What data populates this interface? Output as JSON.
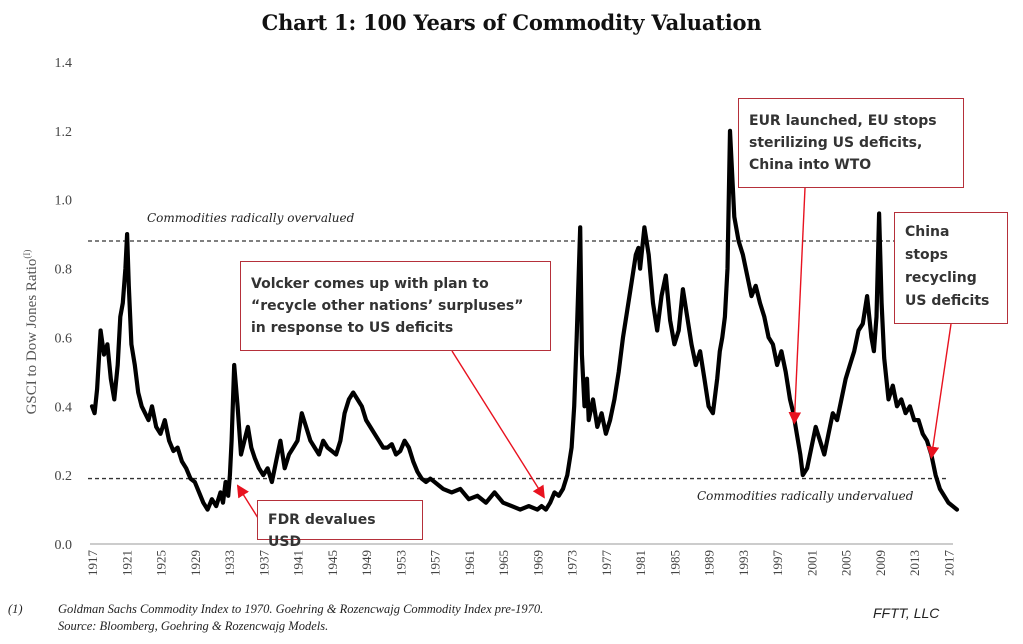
{
  "chart_data": {
    "type": "line",
    "title": "Chart 1: 100 Years of Commodity Valuation",
    "xlabel": "",
    "ylabel": "GSCI to Dow Jones Ratio",
    "ylabel_superscript": "(I)",
    "xlim": [
      1917,
      2018
    ],
    "ylim": [
      0,
      1.4
    ],
    "yticks": [
      "0.0",
      "0.2",
      "0.4",
      "0.6",
      "0.8",
      "1.0",
      "1.2",
      "1.4"
    ],
    "ytick_values": [
      0,
      0.2,
      0.4,
      0.6,
      0.8,
      1.0,
      1.2,
      1.4
    ],
    "xticks": [
      "1917",
      "1921",
      "1925",
      "1929",
      "1933",
      "1937",
      "1941",
      "1945",
      "1949",
      "1953",
      "1957",
      "1961",
      "1965",
      "1969",
      "1973",
      "1977",
      "1981",
      "1985",
      "1989",
      "1993",
      "1997",
      "2001",
      "2005",
      "2009",
      "2013",
      "2017"
    ],
    "grid": false,
    "legend": "none",
    "color": "#000000",
    "reference_lines": [
      {
        "y": 0.88,
        "style": "dashed",
        "label": "Commodities radically overvalued"
      },
      {
        "y": 0.19,
        "style": "dashed",
        "label": "Commodities radically undervalued"
      }
    ],
    "series": [
      {
        "name": "GSCI to Dow Jones Ratio",
        "x": [
          1917.0,
          1917.3,
          1917.6,
          1918.0,
          1918.4,
          1918.8,
          1919.2,
          1919.6,
          1920.0,
          1920.3,
          1920.6,
          1920.9,
          1921.1,
          1921.3,
          1921.6,
          1922.0,
          1922.4,
          1922.8,
          1923.2,
          1923.6,
          1924.0,
          1924.5,
          1925.0,
          1925.5,
          1926.0,
          1926.5,
          1927.0,
          1927.5,
          1928.0,
          1928.5,
          1929.0,
          1929.5,
          1930.0,
          1930.5,
          1931.0,
          1931.5,
          1932.0,
          1932.3,
          1932.6,
          1932.9,
          1933.1,
          1933.3,
          1933.6,
          1934.0,
          1934.4,
          1934.8,
          1935.2,
          1935.6,
          1936.0,
          1936.5,
          1937.0,
          1937.5,
          1938.0,
          1938.5,
          1939.0,
          1939.5,
          1940.0,
          1940.5,
          1941.0,
          1941.5,
          1942.0,
          1942.5,
          1943.0,
          1943.5,
          1944.0,
          1944.5,
          1945.0,
          1945.5,
          1946.0,
          1946.5,
          1947.0,
          1947.5,
          1948.0,
          1948.5,
          1949.0,
          1949.5,
          1950.0,
          1950.5,
          1951.0,
          1951.5,
          1952.0,
          1952.5,
          1953.0,
          1953.5,
          1954.0,
          1954.5,
          1955.0,
          1955.5,
          1956.0,
          1956.5,
          1957.0,
          1957.5,
          1958.0,
          1959.0,
          1960.0,
          1961.0,
          1962.0,
          1963.0,
          1964.0,
          1965.0,
          1966.0,
          1967.0,
          1968.0,
          1969.0,
          1969.5,
          1970.0,
          1970.5,
          1971.0,
          1971.5,
          1972.0,
          1972.5,
          1973.0,
          1973.3,
          1973.6,
          1974.0,
          1974.2,
          1974.5,
          1974.8,
          1975.0,
          1975.5,
          1976.0,
          1976.5,
          1977.0,
          1977.5,
          1978.0,
          1978.5,
          1979.0,
          1979.5,
          1980.0,
          1980.5,
          1980.8,
          1981.0,
          1981.5,
          1982.0,
          1982.5,
          1983.0,
          1983.5,
          1984.0,
          1984.5,
          1985.0,
          1985.5,
          1986.0,
          1986.5,
          1987.0,
          1987.5,
          1988.0,
          1988.5,
          1989.0,
          1989.5,
          1990.0,
          1990.3,
          1990.6,
          1990.9,
          1991.2,
          1991.5,
          1992.0,
          1992.5,
          1993.0,
          1993.5,
          1994.0,
          1994.5,
          1995.0,
          1995.5,
          1996.0,
          1996.5,
          1997.0,
          1997.5,
          1998.0,
          1998.5,
          1998.9,
          1999.3,
          1999.7,
          2000.0,
          2000.5,
          2001.0,
          2001.5,
          2002.0,
          2002.5,
          2003.0,
          2003.5,
          2004.0,
          2004.5,
          2005.0,
          2005.5,
          2006.0,
          2006.5,
          2007.0,
          2007.5,
          2008.0,
          2008.3,
          2008.6,
          2008.9,
          2009.2,
          2009.5,
          2010.0,
          2010.5,
          2011.0,
          2011.5,
          2012.0,
          2012.5,
          2013.0,
          2013.5,
          2014.0,
          2014.5,
          2015.0,
          2015.5,
          2016.0,
          2016.5,
          2017.0,
          2017.5,
          2018.0
        ],
        "y": [
          0.4,
          0.38,
          0.45,
          0.62,
          0.55,
          0.58,
          0.48,
          0.42,
          0.52,
          0.66,
          0.7,
          0.8,
          0.9,
          0.75,
          0.58,
          0.52,
          0.44,
          0.4,
          0.38,
          0.36,
          0.4,
          0.34,
          0.32,
          0.36,
          0.3,
          0.27,
          0.28,
          0.24,
          0.22,
          0.19,
          0.18,
          0.15,
          0.12,
          0.1,
          0.13,
          0.11,
          0.15,
          0.12,
          0.18,
          0.14,
          0.2,
          0.3,
          0.52,
          0.4,
          0.26,
          0.3,
          0.34,
          0.28,
          0.25,
          0.22,
          0.2,
          0.22,
          0.18,
          0.24,
          0.3,
          0.22,
          0.26,
          0.28,
          0.3,
          0.38,
          0.34,
          0.3,
          0.28,
          0.26,
          0.3,
          0.28,
          0.27,
          0.26,
          0.3,
          0.38,
          0.42,
          0.44,
          0.42,
          0.4,
          0.36,
          0.34,
          0.32,
          0.3,
          0.28,
          0.28,
          0.29,
          0.26,
          0.27,
          0.3,
          0.28,
          0.24,
          0.21,
          0.19,
          0.18,
          0.19,
          0.18,
          0.17,
          0.16,
          0.15,
          0.16,
          0.13,
          0.14,
          0.12,
          0.15,
          0.12,
          0.11,
          0.1,
          0.11,
          0.1,
          0.11,
          0.1,
          0.12,
          0.15,
          0.14,
          0.16,
          0.2,
          0.28,
          0.4,
          0.6,
          0.92,
          0.55,
          0.4,
          0.48,
          0.36,
          0.42,
          0.34,
          0.38,
          0.32,
          0.36,
          0.42,
          0.5,
          0.6,
          0.68,
          0.76,
          0.84,
          0.86,
          0.8,
          0.92,
          0.84,
          0.7,
          0.62,
          0.72,
          0.78,
          0.65,
          0.58,
          0.62,
          0.74,
          0.66,
          0.58,
          0.52,
          0.56,
          0.48,
          0.4,
          0.38,
          0.48,
          0.56,
          0.6,
          0.66,
          0.8,
          1.2,
          0.95,
          0.88,
          0.84,
          0.78,
          0.72,
          0.75,
          0.7,
          0.66,
          0.6,
          0.58,
          0.52,
          0.56,
          0.5,
          0.42,
          0.38,
          0.32,
          0.26,
          0.2,
          0.22,
          0.28,
          0.34,
          0.3,
          0.26,
          0.32,
          0.38,
          0.36,
          0.42,
          0.48,
          0.52,
          0.56,
          0.62,
          0.64,
          0.72,
          0.6,
          0.56,
          0.66,
          0.96,
          0.7,
          0.54,
          0.42,
          0.46,
          0.4,
          0.42,
          0.38,
          0.4,
          0.36,
          0.36,
          0.32,
          0.3,
          0.26,
          0.2,
          0.16,
          0.14,
          0.12,
          0.11,
          0.1
        ]
      }
    ],
    "annotations": [
      {
        "text": "FDR devalues USD",
        "points_to_x": 1933,
        "points_to_y": 0.14
      },
      {
        "text": "Volcker comes up with plan to “recycle other nations’ surpluses” in response to US deficits",
        "points_to_x": 1969,
        "points_to_y": 0.12
      },
      {
        "text": "EUR launched, EU stops sterilizing US deficits, China into WTO",
        "points_to_x": 1999,
        "points_to_y": 0.34
      },
      {
        "text": "China stops recycling US deficits",
        "points_to_x": 2015,
        "points_to_y": 0.24
      }
    ]
  },
  "annotations_text": {
    "fdr": "FDR devalues USD",
    "volcker": [
      "Volcker comes up with plan to",
      "“recycle other nations’ surpluses”",
      "in response to US deficits"
    ],
    "eur": [
      "EUR launched, EU stops",
      "sterilizing US deficits,",
      "China into WTO"
    ],
    "china": [
      "China",
      "stops",
      "recycling",
      "US deficits"
    ],
    "overvalued": "Commodities radically overvalued",
    "undervalued": "Commodities radically undervalued"
  },
  "footnote": {
    "marker": "(1)",
    "line1": "Goldman Sachs Commodity Index to 1970.  Goehring & Rozencwajg Commodity Index pre-1970.",
    "line2": "Source: Bloomberg, Goehring & Rozencwajg Models."
  },
  "credit": "FFTT, LLC"
}
